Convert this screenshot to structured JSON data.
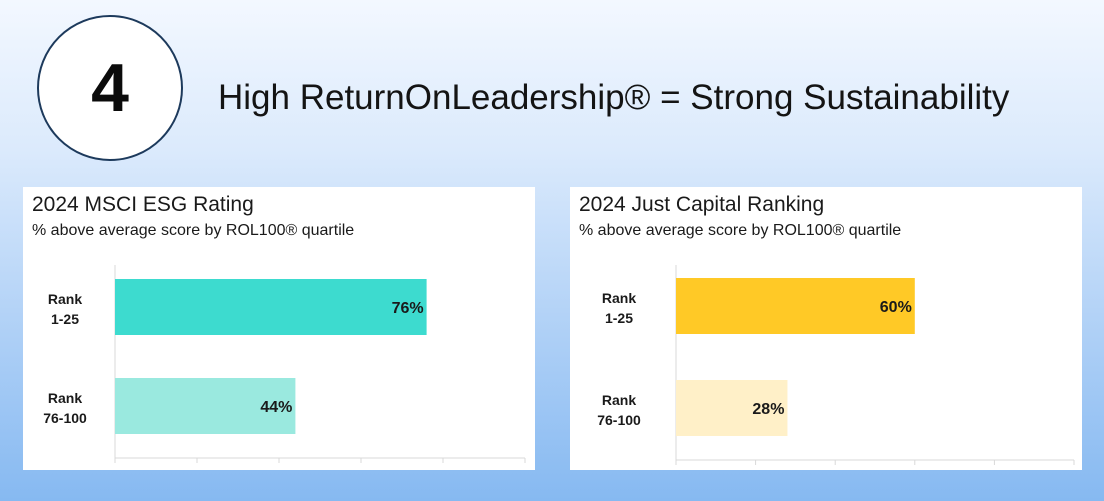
{
  "header": {
    "number": "4",
    "title": "High ReturnOnLeadership® = Strong Sustainability"
  },
  "colors": {
    "msci_top": "#3ddbcf",
    "msci_bottom": "#9ae9df",
    "jc_top": "#ffc926",
    "jc_bottom": "#fff0c8"
  },
  "chart_data": [
    {
      "type": "bar",
      "orientation": "horizontal",
      "title": "2024 MSCI ESG Rating",
      "subtitle": "% above average score by ROL100® quartile",
      "categories": [
        "Rank\n1-25",
        "Rank\n76-100"
      ],
      "values": [
        76,
        44
      ],
      "data_labels": [
        "76%",
        "44%"
      ],
      "colors": [
        "#3ddbcf",
        "#9ae9df"
      ],
      "xlim": [
        0,
        100
      ],
      "grid": false
    },
    {
      "type": "bar",
      "orientation": "horizontal",
      "title": "2024 Just Capital Ranking",
      "subtitle": "% above average score by ROL100® quartile",
      "categories": [
        "Rank\n1-25",
        "Rank\n76-100"
      ],
      "values": [
        60,
        28
      ],
      "data_labels": [
        "60%",
        "28%"
      ],
      "colors": [
        "#ffc926",
        "#fff0c8"
      ],
      "xlim": [
        0,
        100
      ],
      "grid": false
    }
  ]
}
